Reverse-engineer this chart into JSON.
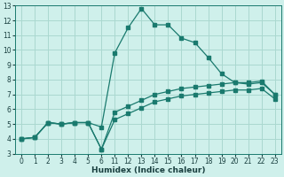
{
  "bg_color": "#cff0eb",
  "grid_color": "#aad8d0",
  "line_color": "#1a7a6e",
  "xlabel": "Humidex (Indice chaleur)",
  "xlim": [
    0,
    24
  ],
  "ylim": [
    3,
    13
  ],
  "yticks": [
    3,
    4,
    5,
    6,
    7,
    8,
    9,
    10,
    11,
    12,
    13
  ],
  "xtick_positions": [
    0,
    1,
    2,
    3,
    4,
    5,
    6,
    11,
    12,
    13,
    14,
    15,
    16,
    17,
    18,
    19,
    20,
    21,
    22,
    23
  ],
  "xtick_labels": [
    "0",
    "1",
    "2",
    "3",
    "4",
    "5",
    "6",
    "11",
    "12",
    "13",
    "14",
    "15",
    "16",
    "17",
    "18",
    "19",
    "20",
    "21",
    "22",
    "23"
  ],
  "line1_x": [
    0,
    1,
    2,
    3,
    4,
    5,
    6,
    11,
    12,
    13,
    14,
    15,
    16,
    17,
    18,
    19,
    20,
    21,
    22,
    23
  ],
  "line1_y": [
    4.0,
    4.1,
    5.1,
    5.0,
    5.1,
    5.1,
    4.8,
    9.8,
    11.5,
    12.8,
    11.7,
    11.7,
    10.8,
    10.5,
    9.5,
    8.4,
    7.8,
    7.7,
    7.8,
    7.0
  ],
  "line2_x": [
    0,
    1,
    2,
    3,
    4,
    5,
    6,
    11,
    12,
    13,
    14,
    15,
    16,
    17,
    18,
    19,
    20,
    21,
    22,
    23
  ],
  "line2_y": [
    4.0,
    4.1,
    5.1,
    5.0,
    5.1,
    5.1,
    3.3,
    5.8,
    6.2,
    6.6,
    7.0,
    7.2,
    7.4,
    7.5,
    7.6,
    7.7,
    7.8,
    7.8,
    7.9,
    7.0
  ],
  "line3_x": [
    0,
    1,
    2,
    3,
    4,
    5,
    6,
    11,
    12,
    13,
    14,
    15,
    16,
    17,
    18,
    19,
    20,
    21,
    22,
    23
  ],
  "line3_y": [
    4.0,
    4.1,
    5.1,
    5.0,
    5.1,
    5.1,
    3.3,
    5.3,
    5.7,
    6.1,
    6.5,
    6.7,
    6.9,
    7.0,
    7.1,
    7.2,
    7.3,
    7.3,
    7.4,
    6.7
  ],
  "marker_size": 2.5,
  "linewidth": 0.9
}
